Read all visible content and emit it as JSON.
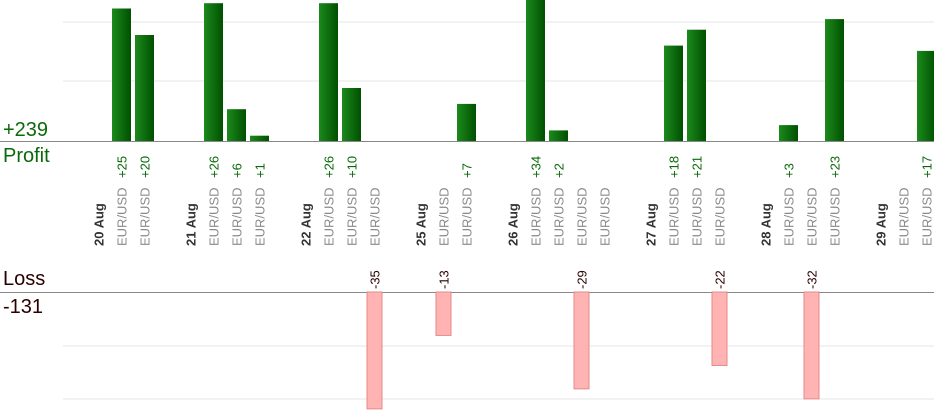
{
  "colors": {
    "profit_fill": "#0b6b0b",
    "profit_text": "#0a6a0a",
    "loss_fill": "#ffb3b3",
    "loss_stroke": "#e58a8a",
    "loss_text": "#2a0000",
    "pair_text": "#8a8a8a",
    "date_text": "#333333",
    "grid": "#e6e6e6"
  },
  "chart_data": {
    "type": "bar",
    "grid": true,
    "profit_total_label": "+239",
    "profit_label": "Profit",
    "loss_total_label": "-131",
    "loss_label": "Loss",
    "groups": [
      {
        "date": "20 Aug",
        "trades": [
          {
            "pair": "EUR/USD",
            "value": 25,
            "label": "+25"
          },
          {
            "pair": "EUR/USD",
            "value": 20,
            "label": "+20"
          }
        ]
      },
      {
        "date": "21 Aug",
        "trades": [
          {
            "pair": "EUR/USD",
            "value": 26,
            "label": "+26"
          },
          {
            "pair": "EUR/USD",
            "value": 6,
            "label": "+6"
          },
          {
            "pair": "EUR/USD",
            "value": 1,
            "label": "+1"
          }
        ]
      },
      {
        "date": "22 Aug",
        "trades": [
          {
            "pair": "EUR/USD",
            "value": 26,
            "label": "+26"
          },
          {
            "pair": "EUR/USD",
            "value": 10,
            "label": "+10"
          },
          {
            "pair": "EUR/USD",
            "value": -35,
            "label": "-35"
          }
        ]
      },
      {
        "date": "25 Aug",
        "trades": [
          {
            "pair": "EUR/USD",
            "value": -13,
            "label": "-13"
          },
          {
            "pair": "EUR/USD",
            "value": 7,
            "label": "+7"
          }
        ]
      },
      {
        "date": "26 Aug",
        "trades": [
          {
            "pair": "EUR/USD",
            "value": 34,
            "label": "+34"
          },
          {
            "pair": "EUR/USD",
            "value": 2,
            "label": "+2"
          },
          {
            "pair": "EUR/USD",
            "value": -29,
            "label": "-29"
          },
          {
            "pair": "EUR/USD",
            "value": 0,
            "label": ""
          }
        ]
      },
      {
        "date": "27 Aug",
        "trades": [
          {
            "pair": "EUR/USD",
            "value": 18,
            "label": "+18"
          },
          {
            "pair": "EUR/USD",
            "value": 21,
            "label": "+21"
          },
          {
            "pair": "EUR/USD",
            "value": -22,
            "label": "-22"
          }
        ]
      },
      {
        "date": "28 Aug",
        "trades": [
          {
            "pair": "EUR/USD",
            "value": 3,
            "label": "+3"
          },
          {
            "pair": "EUR/USD",
            "value": -32,
            "label": "-32"
          },
          {
            "pair": "EUR/USD",
            "value": 23,
            "label": "+23"
          }
        ]
      },
      {
        "date": "29 Aug",
        "trades": [
          {
            "pair": "EUR/USD",
            "value": 0,
            "label": ""
          },
          {
            "pair": "EUR/USD",
            "value": 17,
            "label": "+17"
          }
        ]
      }
    ]
  }
}
